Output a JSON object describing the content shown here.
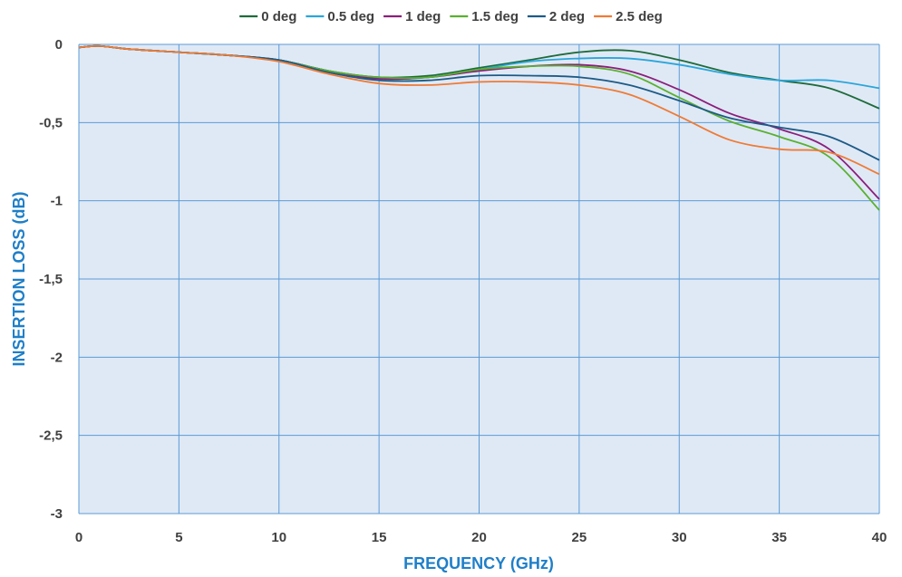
{
  "chart_data": {
    "type": "line",
    "title": "",
    "xlabel": "FREQUENCY (GHz)",
    "ylabel": "INSERTION LOSS (dB)",
    "xlim": [
      0,
      40
    ],
    "ylim": [
      -3,
      0
    ],
    "x_ticks": [
      0,
      5,
      10,
      15,
      20,
      25,
      30,
      35,
      40
    ],
    "x_tick_labels": [
      "0",
      "5",
      "10",
      "15",
      "20",
      "25",
      "30",
      "35",
      "40"
    ],
    "y_ticks": [
      0,
      -0.5,
      -1,
      -1.5,
      -2,
      -2.5,
      -3
    ],
    "y_tick_labels": [
      "0",
      "-0,5",
      "-1",
      "-1,5",
      "-2",
      "-2,5",
      "-3"
    ],
    "grid": true,
    "plot_background": "#dfe9f6",
    "grid_color": "#5b9bd5",
    "axis_title_color": "#1f7fc8",
    "legend_position": "top",
    "x": [
      0,
      1,
      2.5,
      5,
      7.5,
      10,
      12.5,
      15,
      17.5,
      20,
      22.5,
      25,
      27.5,
      30,
      32.5,
      35,
      37.5,
      40
    ],
    "series": [
      {
        "name": "0 deg",
        "color": "#1e6b3a",
        "values": [
          -0.02,
          -0.01,
          -0.03,
          -0.05,
          -0.07,
          -0.1,
          -0.17,
          -0.21,
          -0.2,
          -0.15,
          -0.1,
          -0.05,
          -0.04,
          -0.1,
          -0.18,
          -0.23,
          -0.28,
          -0.41
        ]
      },
      {
        "name": "0.5 deg",
        "color": "#2aa6d9",
        "values": [
          -0.02,
          -0.01,
          -0.03,
          -0.05,
          -0.07,
          -0.1,
          -0.17,
          -0.22,
          -0.21,
          -0.16,
          -0.11,
          -0.09,
          -0.09,
          -0.13,
          -0.19,
          -0.23,
          -0.23,
          -0.28
        ]
      },
      {
        "name": "1 deg",
        "color": "#8b1f7a",
        "values": [
          -0.02,
          -0.01,
          -0.03,
          -0.05,
          -0.07,
          -0.1,
          -0.17,
          -0.22,
          -0.21,
          -0.17,
          -0.14,
          -0.13,
          -0.17,
          -0.29,
          -0.44,
          -0.54,
          -0.67,
          -0.99
        ]
      },
      {
        "name": "1.5 deg",
        "color": "#5ab030",
        "values": [
          -0.02,
          -0.01,
          -0.03,
          -0.05,
          -0.07,
          -0.1,
          -0.17,
          -0.21,
          -0.21,
          -0.16,
          -0.14,
          -0.14,
          -0.19,
          -0.34,
          -0.49,
          -0.59,
          -0.72,
          -1.06
        ]
      },
      {
        "name": "2 deg",
        "color": "#1d5a85",
        "values": [
          -0.02,
          -0.01,
          -0.03,
          -0.05,
          -0.07,
          -0.1,
          -0.18,
          -0.23,
          -0.23,
          -0.2,
          -0.2,
          -0.21,
          -0.26,
          -0.36,
          -0.47,
          -0.53,
          -0.59,
          -0.74
        ]
      },
      {
        "name": "2.5 deg",
        "color": "#ef7b35",
        "values": [
          -0.02,
          -0.01,
          -0.03,
          -0.05,
          -0.07,
          -0.11,
          -0.19,
          -0.25,
          -0.26,
          -0.24,
          -0.24,
          -0.26,
          -0.32,
          -0.46,
          -0.61,
          -0.67,
          -0.69,
          -0.83
        ]
      }
    ]
  }
}
